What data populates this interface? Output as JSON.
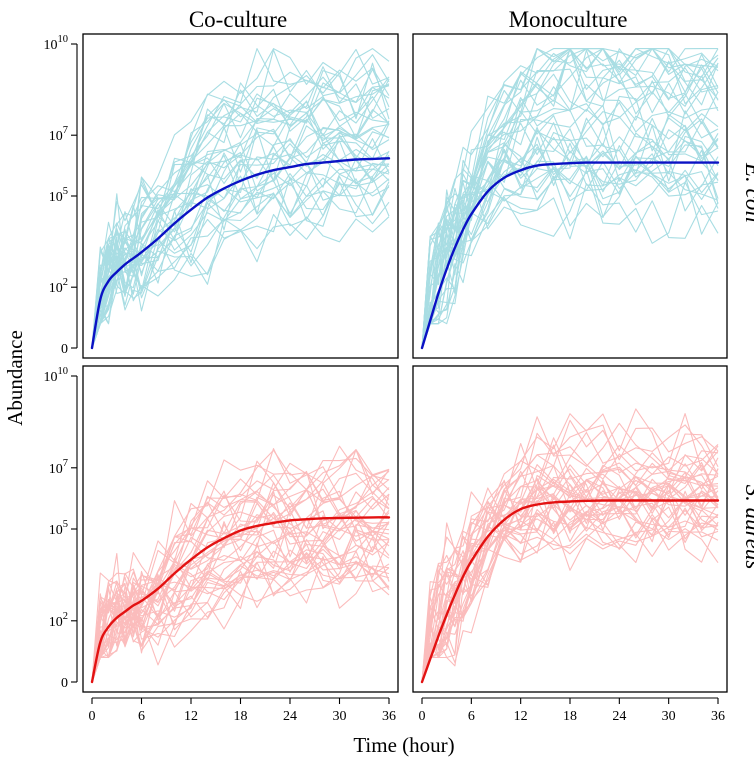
{
  "figure": {
    "ylabel": "Abundance",
    "xlabel": "Time (hour)",
    "columns": [
      "Co-culture",
      "Monoculture"
    ],
    "rows": [
      "E. coli",
      "S. aureus"
    ]
  },
  "colors": {
    "ecoli_individual": "#a8dde3",
    "ecoli_mean": "#0a12c4",
    "saureus_individual": "#fbbcbc",
    "saureus_mean": "#e31212"
  },
  "chart_data": [
    {
      "type": "line",
      "panel": "co-culture-ecoli",
      "column": "Co-culture",
      "row": "E. coli",
      "x": [
        0,
        1,
        2,
        3,
        4,
        5,
        6,
        8,
        10,
        12,
        14,
        16,
        18,
        20,
        22,
        24,
        26,
        28,
        30,
        32,
        34,
        36
      ],
      "yscale": "log10(abundance+1)",
      "ylim": [
        0,
        10
      ],
      "xlim": [
        0,
        36
      ],
      "yticks": [
        0,
        2,
        5,
        7,
        10
      ],
      "ytick_labels": [
        {
          "base": "0",
          "exp": ""
        },
        {
          "base": "10",
          "exp": "2"
        },
        {
          "base": "10",
          "exp": "5"
        },
        {
          "base": "10",
          "exp": "7"
        },
        {
          "base": "10",
          "exp": "10"
        }
      ],
      "xticks": [
        0,
        6,
        12,
        18,
        24,
        30,
        36
      ],
      "series": [
        {
          "name": "mean",
          "values": [
            0,
            1.6,
            2.2,
            2.5,
            2.75,
            2.95,
            3.15,
            3.6,
            4.1,
            4.55,
            4.95,
            5.25,
            5.5,
            5.7,
            5.85,
            5.95,
            6.05,
            6.1,
            6.15,
            6.2,
            6.22,
            6.24
          ]
        }
      ],
      "individual_curves": {
        "count": 40,
        "approx_final_range": [
          4.4,
          9.4
        ]
      }
    },
    {
      "type": "line",
      "panel": "monoculture-ecoli",
      "column": "Monoculture",
      "row": "E. coli",
      "x": [
        0,
        1,
        2,
        3,
        4,
        5,
        6,
        8,
        10,
        12,
        14,
        16,
        18,
        20,
        22,
        24,
        26,
        28,
        30,
        32,
        34,
        36
      ],
      "yscale": "log10(abundance+1)",
      "ylim": [
        0,
        10
      ],
      "xlim": [
        0,
        36
      ],
      "yticks": [
        0,
        2,
        5,
        7,
        10
      ],
      "ytick_labels": [
        {
          "base": "0",
          "exp": ""
        },
        {
          "base": "10",
          "exp": "2"
        },
        {
          "base": "10",
          "exp": "5"
        },
        {
          "base": "10",
          "exp": "7"
        },
        {
          "base": "10",
          "exp": "10"
        }
      ],
      "xticks": [
        0,
        6,
        12,
        18,
        24,
        30,
        36
      ],
      "series": [
        {
          "name": "mean",
          "values": [
            0,
            0.9,
            1.8,
            2.6,
            3.3,
            3.9,
            4.4,
            5.15,
            5.6,
            5.85,
            6.0,
            6.05,
            6.08,
            6.1,
            6.1,
            6.1,
            6.1,
            6.1,
            6.1,
            6.1,
            6.1,
            6.1
          ]
        }
      ],
      "individual_curves": {
        "count": 40,
        "approx_final_range": [
          4.4,
          9.8
        ]
      }
    },
    {
      "type": "line",
      "panel": "co-culture-saureus",
      "column": "Co-culture",
      "row": "S. aureus",
      "x": [
        0,
        1,
        2,
        3,
        4,
        5,
        6,
        8,
        10,
        12,
        14,
        16,
        18,
        20,
        22,
        24,
        26,
        28,
        30,
        32,
        34,
        36
      ],
      "yscale": "log10(abundance+1)",
      "ylim": [
        0,
        10
      ],
      "xlim": [
        0,
        36
      ],
      "yticks": [
        0,
        2,
        5,
        7,
        10
      ],
      "ytick_labels": [
        {
          "base": "0",
          "exp": ""
        },
        {
          "base": "10",
          "exp": "2"
        },
        {
          "base": "10",
          "exp": "5"
        },
        {
          "base": "10",
          "exp": "7"
        },
        {
          "base": "10",
          "exp": "10"
        }
      ],
      "xticks": [
        0,
        6,
        12,
        18,
        24,
        30,
        36
      ],
      "series": [
        {
          "name": "mean",
          "values": [
            0,
            1.3,
            1.8,
            2.1,
            2.3,
            2.5,
            2.65,
            3.05,
            3.55,
            4.0,
            4.4,
            4.7,
            4.95,
            5.1,
            5.2,
            5.28,
            5.32,
            5.35,
            5.36,
            5.37,
            5.38,
            5.38
          ]
        }
      ],
      "individual_curves": {
        "count": 40,
        "approx_final_range": [
          3.6,
          6.9
        ]
      }
    },
    {
      "type": "line",
      "panel": "monoculture-saureus",
      "column": "Monoculture",
      "row": "S. aureus",
      "x": [
        0,
        1,
        2,
        3,
        4,
        5,
        6,
        8,
        10,
        12,
        14,
        16,
        18,
        20,
        22,
        24,
        26,
        28,
        30,
        32,
        34,
        36
      ],
      "yscale": "log10(abundance+1)",
      "ylim": [
        0,
        10
      ],
      "xlim": [
        0,
        36
      ],
      "yticks": [
        0,
        2,
        5,
        7,
        10
      ],
      "ytick_labels": [
        {
          "base": "0",
          "exp": ""
        },
        {
          "base": "10",
          "exp": "2"
        },
        {
          "base": "10",
          "exp": "5"
        },
        {
          "base": "10",
          "exp": "7"
        },
        {
          "base": "10",
          "exp": "10"
        }
      ],
      "xticks": [
        0,
        6,
        12,
        18,
        24,
        30,
        36
      ],
      "series": [
        {
          "name": "mean",
          "values": [
            0,
            0.75,
            1.5,
            2.2,
            2.85,
            3.45,
            3.95,
            4.75,
            5.3,
            5.65,
            5.8,
            5.87,
            5.9,
            5.92,
            5.93,
            5.93,
            5.93,
            5.93,
            5.93,
            5.93,
            5.93,
            5.93
          ]
        }
      ],
      "individual_curves": {
        "count": 40,
        "approx_final_range": [
          4.9,
          8.0
        ]
      }
    }
  ]
}
